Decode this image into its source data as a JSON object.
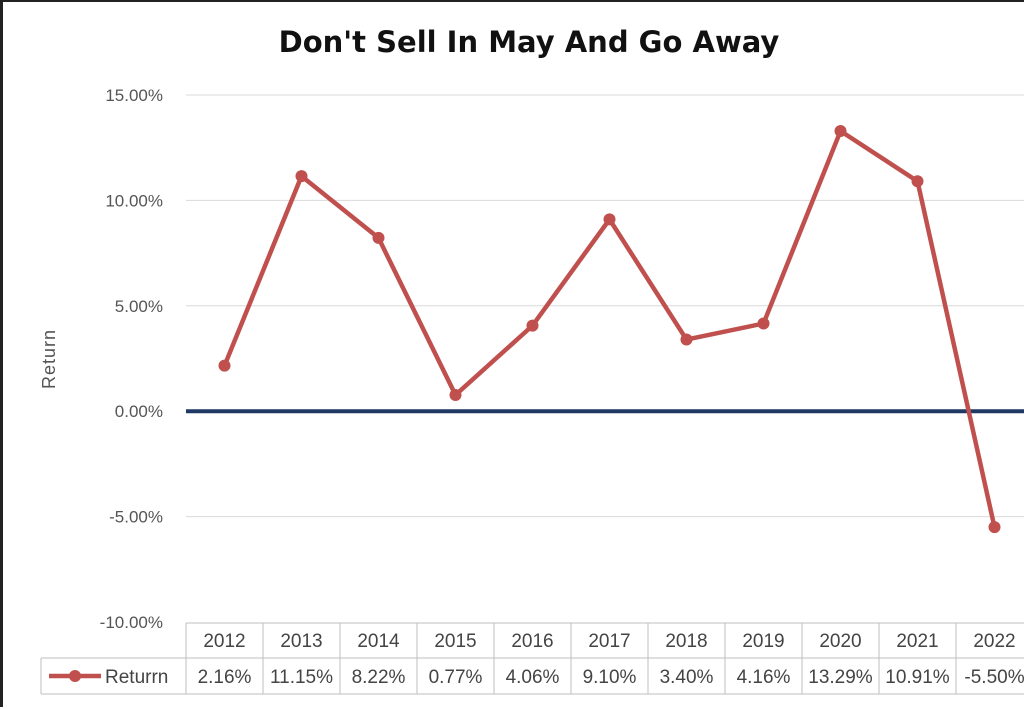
{
  "chart_data": {
    "type": "line",
    "title": "Don't Sell In May And Go Away",
    "ylabel": "Return",
    "xlabel": "",
    "ylim": [
      -10,
      15
    ],
    "yticks": [
      15,
      10,
      5,
      0,
      -5,
      -10
    ],
    "ytick_labels": [
      "15.00%",
      "10.00%",
      "5.00%",
      "0.00%",
      "-5.00%",
      "-10.00%"
    ],
    "categories": [
      "2012",
      "2013",
      "2014",
      "2015",
      "2016",
      "2017",
      "2018",
      "2019",
      "2020",
      "2021",
      "2022"
    ],
    "series": [
      {
        "name": "Returrn",
        "values": [
          2.16,
          11.15,
          8.22,
          0.77,
          4.06,
          9.1,
          3.4,
          4.16,
          13.29,
          10.91,
          -5.5
        ],
        "value_labels": [
          "2.16%",
          "11.15%",
          "8.22%",
          "0.77%",
          "4.06%",
          "9.10%",
          "3.40%",
          "4.16%",
          "13.29%",
          "10.91%",
          "-5.50%"
        ],
        "color": "#c0504d"
      }
    ],
    "zero_line_color": "#1f3864",
    "grid": true,
    "legend": "data-table-left"
  }
}
